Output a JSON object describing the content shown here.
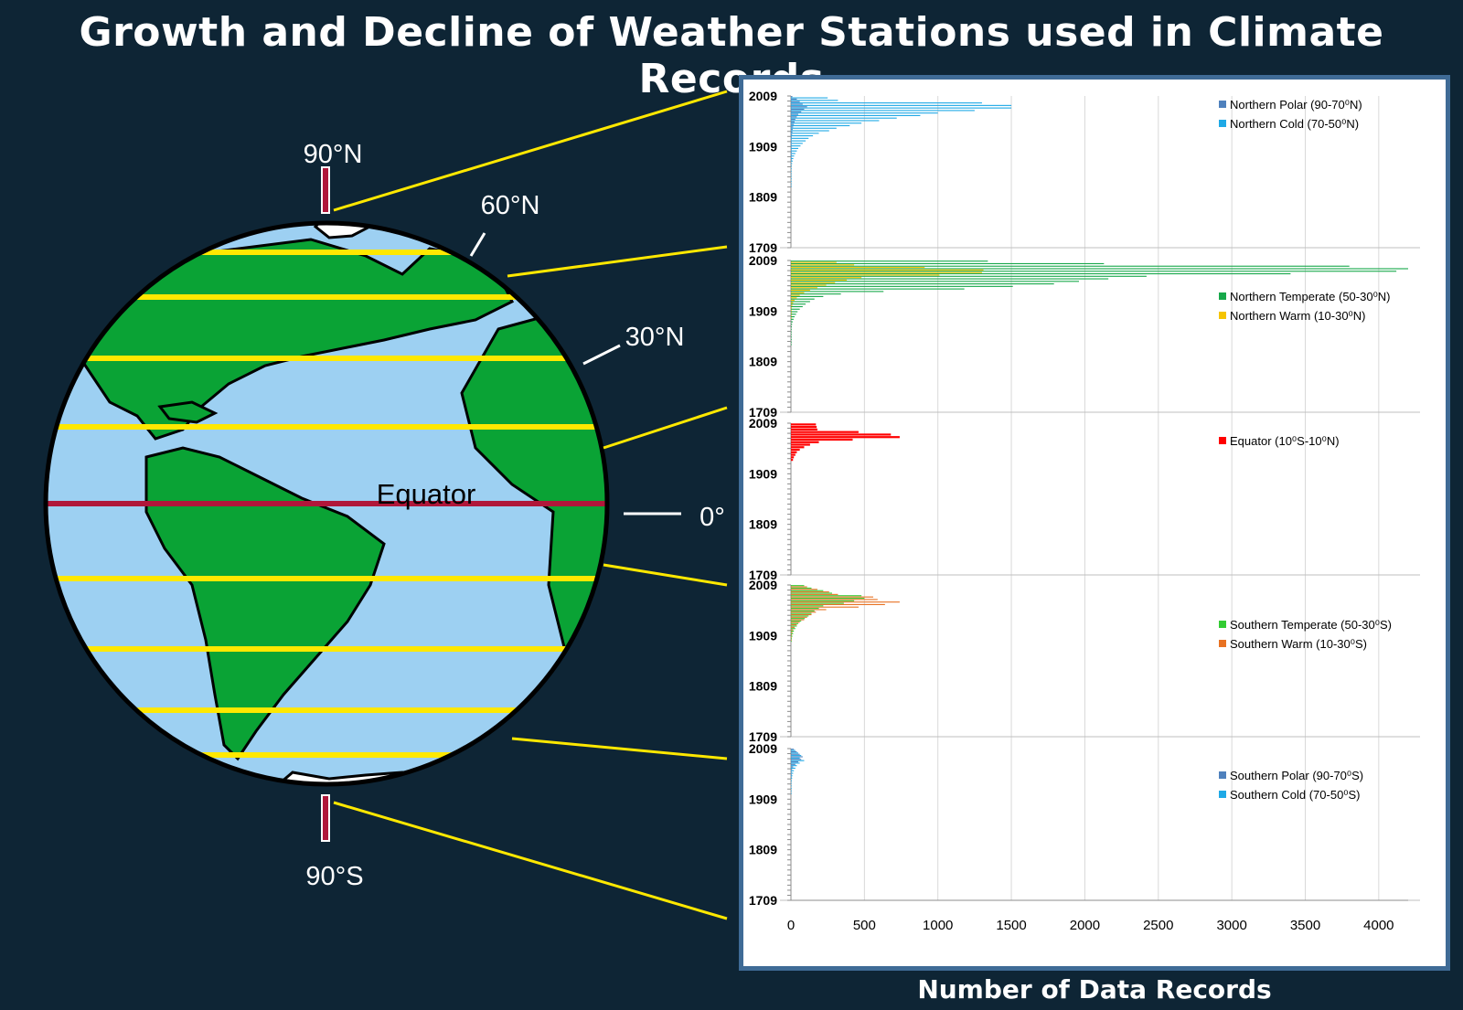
{
  "title": "Growth and Decline of Weather Stations used in Climate Records",
  "globe": {
    "labels": {
      "n90": "90°N",
      "n60": "60°N",
      "n30": "30°N",
      "equator": "Equator",
      "zero": "0°",
      "s90": "90°S"
    },
    "colors": {
      "ocean": "#9dd0f2",
      "land": "#0aa335",
      "ice": "#ffffff",
      "latitude_line": "#ffe800",
      "equator_line": "#b0173a",
      "outline": "#000000"
    }
  },
  "chart_data": {
    "type": "bar",
    "orientation": "horizontal",
    "x_title": "Number of Data Records",
    "x_ticks": [
      "0",
      "500",
      "1000",
      "1500",
      "2000",
      "2500",
      "3000",
      "3500",
      "4000"
    ],
    "xlim": [
      0,
      4200
    ],
    "y_ticks": [
      "2009",
      "1909",
      "1809",
      "1709"
    ],
    "ylim": [
      1709,
      2009
    ],
    "bin_years": 5,
    "grid": "vertical",
    "legend_position": "right",
    "panels": [
      {
        "series": [
          {
            "name": "Northern Polar (90-70⁰N)",
            "color": "#4f81bd",
            "values": [
              10,
              40,
              60,
              80,
              110,
              90,
              70,
              50,
              40,
              30,
              25,
              20,
              15,
              12,
              10,
              8,
              6,
              5,
              4,
              3,
              2,
              2,
              1,
              1,
              1,
              1,
              0,
              0,
              0,
              0,
              0,
              0,
              0,
              0,
              0,
              0,
              0,
              0,
              0,
              0,
              0,
              0,
              0,
              0,
              0,
              0,
              0,
              0,
              0,
              0,
              0,
              0,
              0,
              0,
              0,
              0,
              0,
              0,
              0,
              0
            ]
          },
          {
            "name": "Northern Cold (70-50⁰N)",
            "color": "#1fa9e6",
            "values": [
              250,
              320,
              1300,
              1500,
              1500,
              1250,
              1000,
              880,
              720,
              600,
              480,
              400,
              310,
              260,
              190,
              150,
              120,
              100,
              80,
              65,
              50,
              40,
              30,
              22,
              16,
              12,
              8,
              6,
              4,
              3,
              2,
              2,
              1,
              1,
              1,
              1,
              0,
              0,
              0,
              0,
              0,
              0,
              0,
              0,
              0,
              0,
              0,
              0,
              0,
              0,
              0,
              0,
              0,
              0,
              0,
              0,
              0,
              0,
              0,
              0
            ]
          }
        ]
      },
      {
        "series": [
          {
            "name": "Northern Temperate (50-30⁰N)",
            "color": "#17a84a",
            "values": [
              1340,
              2130,
              3800,
              4200,
              4120,
              3400,
              2420,
              2160,
              1960,
              1790,
              1510,
              1180,
              630,
              340,
              220,
              160,
              130,
              100,
              80,
              60,
              45,
              35,
              25,
              18,
              12,
              8,
              6,
              4,
              3,
              2,
              2,
              1,
              1,
              1,
              0,
              0,
              0,
              0,
              0,
              0,
              0,
              0,
              0,
              0,
              0,
              0,
              0,
              0,
              0,
              0,
              0,
              0,
              0,
              0,
              0,
              0,
              0,
              0,
              0,
              0
            ]
          },
          {
            "name": "Northern Warm (10-30⁰N)",
            "color": "#f5c400",
            "values": [
              310,
              430,
              910,
              1310,
              1300,
              1010,
              480,
              380,
              300,
              240,
              180,
              130,
              90,
              60,
              40,
              25,
              15,
              10,
              6,
              4,
              2,
              1,
              1,
              0,
              0,
              0,
              0,
              0,
              0,
              0,
              0,
              0,
              0,
              0,
              0,
              0,
              0,
              0,
              0,
              0,
              0,
              0,
              0,
              0,
              0,
              0,
              0,
              0,
              0,
              0,
              0,
              0,
              0,
              0,
              0,
              0,
              0,
              0,
              0,
              0
            ]
          }
        ]
      },
      {
        "series": [
          {
            "name": "Equator (10⁰S-10⁰N)",
            "color": "#ff0000",
            "values": [
              170,
              175,
              180,
              460,
              680,
              740,
              420,
              190,
              130,
              90,
              60,
              40,
              30,
              20,
              14,
              0,
              0,
              0,
              0,
              0,
              0,
              0,
              0,
              0,
              0,
              0,
              0,
              0,
              0,
              0,
              0,
              0,
              0,
              0,
              0,
              0,
              0,
              0,
              0,
              0,
              0,
              0,
              0,
              0,
              0,
              0,
              0,
              0,
              0,
              0,
              0,
              0,
              0,
              0,
              0,
              0,
              0,
              0,
              0,
              0
            ]
          }
        ]
      },
      {
        "series": [
          {
            "name": "Southern Temperate (50-30⁰S)",
            "color": "#33cc33",
            "values": [
              90,
              140,
              220,
              280,
              480,
              500,
              430,
              360,
              220,
              190,
              160,
              140,
              120,
              95,
              70,
              50,
              40,
              30,
              20,
              15,
              10,
              6,
              3,
              0,
              0,
              0,
              0,
              0,
              0,
              0,
              0,
              0,
              0,
              0,
              0,
              0,
              0,
              0,
              0,
              0,
              0,
              0,
              0,
              0,
              0,
              0,
              0,
              0,
              0,
              0,
              0,
              0,
              0,
              0,
              0,
              0,
              0,
              0,
              0,
              0
            ]
          },
          {
            "name": "Southern Warm (10-30⁰S)",
            "color": "#e87222",
            "values": [
              110,
              180,
              260,
              320,
              560,
              590,
              740,
              640,
              460,
              240,
              170,
              140,
              110,
              90,
              60,
              40,
              25,
              15,
              10,
              6,
              3,
              1,
              0,
              0,
              0,
              0,
              0,
              0,
              0,
              0,
              0,
              0,
              0,
              0,
              0,
              0,
              0,
              0,
              0,
              0,
              0,
              0,
              0,
              0,
              0,
              0,
              0,
              0,
              0,
              0,
              0,
              0,
              0,
              0,
              0,
              0,
              0,
              0,
              0,
              0
            ]
          }
        ]
      },
      {
        "series": [
          {
            "name": "Southern Polar (90-70⁰S)",
            "color": "#4f81bd",
            "values": [
              20,
              40,
              60,
              80,
              70,
              50,
              30,
              15,
              8,
              4,
              2,
              1,
              0,
              0,
              0,
              0,
              0,
              0,
              0,
              0,
              0,
              0,
              0,
              0,
              0,
              0,
              0,
              0,
              0,
              0,
              0,
              0,
              0,
              0,
              0,
              0,
              0,
              0,
              0,
              0,
              0,
              0,
              0,
              0,
              0,
              0,
              0,
              0,
              0,
              0,
              0,
              0,
              0,
              0,
              0,
              0,
              0,
              0,
              0,
              0
            ]
          },
          {
            "name": "Southern Cold (70-50⁰S)",
            "color": "#1fa9e6",
            "values": [
              30,
              50,
              70,
              60,
              90,
              60,
              40,
              30,
              20,
              15,
              10,
              8,
              6,
              4,
              3,
              2,
              1,
              1,
              0,
              0,
              0,
              0,
              0,
              0,
              0,
              0,
              0,
              0,
              0,
              0,
              0,
              0,
              0,
              0,
              0,
              0,
              0,
              0,
              0,
              0,
              0,
              0,
              0,
              0,
              0,
              0,
              0,
              0,
              0,
              0,
              0,
              0,
              0,
              0,
              0,
              0,
              0,
              0,
              0,
              0
            ]
          }
        ]
      }
    ]
  }
}
